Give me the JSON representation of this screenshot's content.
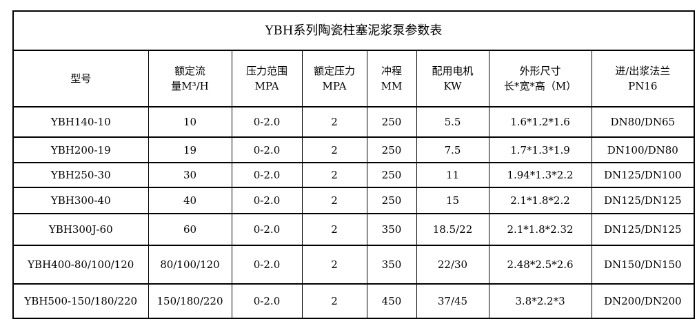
{
  "title": "YBH系列陶瓷柱塞泥浆泵参数表",
  "headers": [
    {
      "line1": "型号",
      "line2": ""
    },
    {
      "line1": "额定流",
      "line2": "量M³/H"
    },
    {
      "line1": "压力范围",
      "line2": "MPA"
    },
    {
      "line1": "额定压力",
      "line2": "MPA"
    },
    {
      "line1": "冲程",
      "line2": "MM"
    },
    {
      "line1": "配用电机",
      "line2": "KW"
    },
    {
      "line1": "外形尺寸",
      "line2": "长*宽*高（M）"
    },
    {
      "line1": "进/出浆法兰",
      "line2": "PN16"
    }
  ],
  "rows": [
    [
      "YBH140-10",
      "10",
      "0-2.0",
      "2",
      "250",
      "5.5",
      "1.6*1.2*1.6",
      "DN80/DN65"
    ],
    [
      "YBH200-19",
      "19",
      "0-2.0",
      "2",
      "250",
      "7.5",
      "1.7*1.3*1.9",
      "DN100/DN80"
    ],
    [
      "YBH250-30",
      "30",
      "0-2.0",
      "2",
      "250",
      "11",
      "1.94*1.3*2.2",
      "DN125/DN100"
    ],
    [
      "YBH300-40",
      "40",
      "0-2.0",
      "2",
      "250",
      "15",
      "2.1*1.8*2.2",
      "DN125/DN125"
    ],
    [
      "YBH300J-60",
      "60",
      "0-2.0",
      "2",
      "350",
      "18.5/22",
      "2.1*1.8*2.32",
      "DN125/DN125"
    ],
    [
      "YBH400-80/100/120",
      "80/100/120",
      "0-2.0",
      "2",
      "350",
      "22/30",
      "2.48*2.5*2.6",
      "DN150/DN150"
    ],
    [
      "YBH500-150/180/220",
      "150/180/220",
      "0-2.0",
      "2",
      "450",
      "37/45",
      "3.8*2.2*3",
      "DN200/DN200"
    ]
  ]
}
